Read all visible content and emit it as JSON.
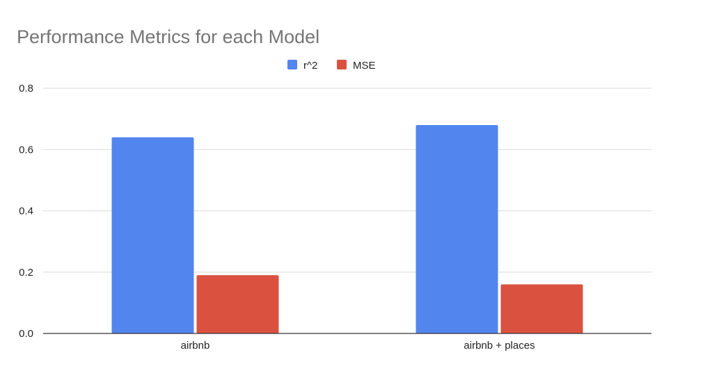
{
  "chart_data": {
    "type": "bar",
    "title": "Performance Metrics for each Model",
    "xlabel": "",
    "ylabel": "",
    "categories": [
      "airbnb",
      "airbnb + places"
    ],
    "series": [
      {
        "name": "r^2",
        "color": "#5385EE",
        "values": [
          0.64,
          0.68
        ]
      },
      {
        "name": "MSE",
        "color": "#DA5140",
        "values": [
          0.19,
          0.16
        ]
      }
    ],
    "yticks": [
      "0.0",
      "0.2",
      "0.4",
      "0.6",
      "0.8"
    ],
    "ylim": [
      0,
      0.8
    ],
    "grid": true,
    "legend_position": "top-center"
  }
}
